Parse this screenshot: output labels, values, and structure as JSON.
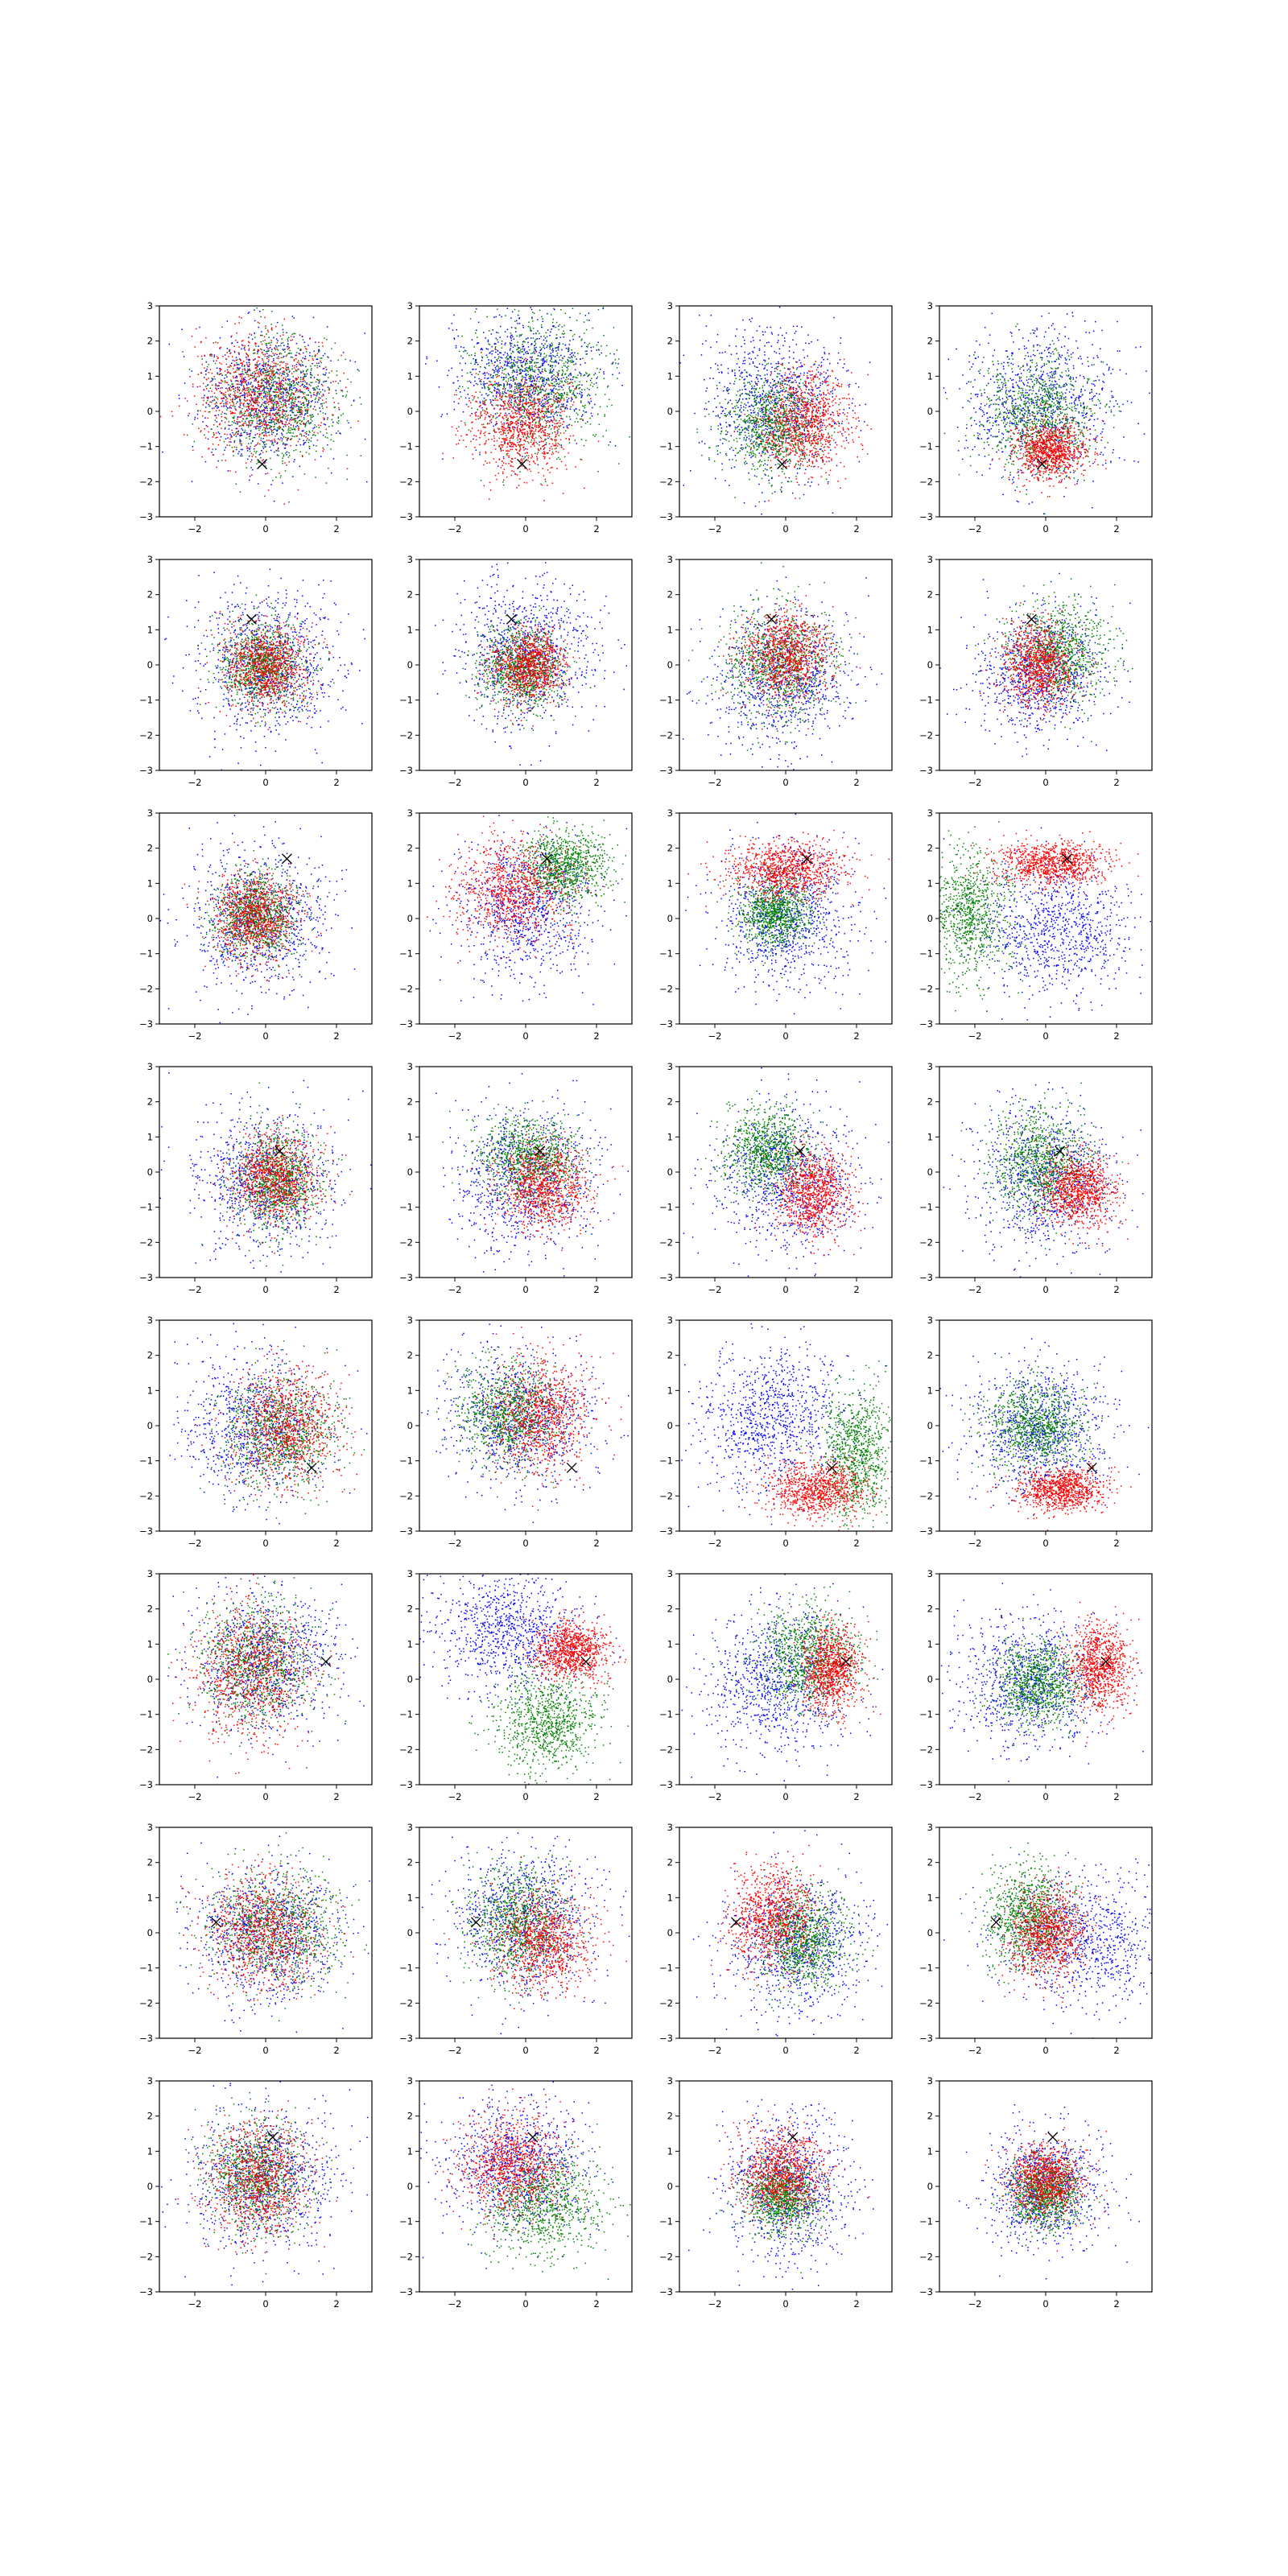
{
  "chart_data": {
    "type": "scatter",
    "layout": {
      "rows": 8,
      "cols": 4
    },
    "x_range": [
      -3,
      3
    ],
    "y_range": [
      -3,
      3
    ],
    "x_ticks": [
      -2,
      0,
      2
    ],
    "x_tick_labels": [
      "−2",
      "0",
      "2"
    ],
    "y_ticks": [
      -3,
      -2,
      -1,
      0,
      1,
      2,
      3
    ],
    "y_tick_labels": [
      "−3",
      "−2",
      "−1",
      "0",
      "1",
      "2",
      "3"
    ],
    "grid": false,
    "legend": "none",
    "marker_style": "x",
    "point_style": "tiny dots",
    "series_colors": {
      "blue": "#0000ff",
      "green": "#008000",
      "red": "#ff0000"
    },
    "rows": [
      {
        "marker": [
          -0.1,
          -1.5
        ],
        "panels": [
          {
            "blue": {
              "cx": 0,
              "cy": 0.4,
              "sx": 0.95,
              "sy": 0.95
            },
            "green": {
              "cx": 0.3,
              "cy": 0.3,
              "sx": 0.9,
              "sy": 0.9
            },
            "red": {
              "cx": -0.2,
              "cy": 0.5,
              "sx": 0.9,
              "sy": 0.9
            }
          },
          {
            "blue": {
              "cx": 0,
              "cy": 1.0,
              "sx": 1.0,
              "sy": 0.9
            },
            "green": {
              "cx": 0.3,
              "cy": 0.8,
              "sx": 0.9,
              "sy": 0.9
            },
            "red": {
              "cx": -0.1,
              "cy": -0.4,
              "sx": 0.7,
              "sy": 0.7
            }
          },
          {
            "blue": {
              "cx": -0.3,
              "cy": 0.3,
              "sx": 1.0,
              "sy": 1.1
            },
            "green": {
              "cx": -0.4,
              "cy": -0.4,
              "sx": 0.7,
              "sy": 0.7
            },
            "red": {
              "cx": 0.5,
              "cy": -0.3,
              "sx": 0.6,
              "sy": 0.7
            }
          },
          {
            "blue": {
              "cx": -0.1,
              "cy": 0.2,
              "sx": 1.1,
              "sy": 1.1
            },
            "green": {
              "cx": -0.2,
              "cy": -0.1,
              "sx": 0.8,
              "sy": 0.8
            },
            "red": {
              "cx": 0.1,
              "cy": -1.1,
              "sx": 0.5,
              "sy": 0.4
            }
          }
        ]
      },
      {
        "marker": [
          -0.4,
          1.3
        ],
        "panels": [
          {
            "blue": {
              "cx": 0,
              "cy": 0,
              "sx": 1.0,
              "sy": 1.0
            },
            "green": {
              "cx": -0.1,
              "cy": 0,
              "sx": 0.6,
              "sy": 0.6
            },
            "red": {
              "cx": 0,
              "cy": 0,
              "sx": 0.6,
              "sy": 0.6
            }
          },
          {
            "blue": {
              "cx": 0,
              "cy": 0.3,
              "sx": 1.0,
              "sy": 1.0
            },
            "green": {
              "cx": -0.1,
              "cy": -0.1,
              "sx": 0.6,
              "sy": 0.6
            },
            "red": {
              "cx": 0.1,
              "cy": 0,
              "sx": 0.5,
              "sy": 0.5
            }
          },
          {
            "blue": {
              "cx": -0.1,
              "cy": -0.3,
              "sx": 1.0,
              "sy": 1.0
            },
            "green": {
              "cx": -0.2,
              "cy": 0,
              "sx": 0.8,
              "sy": 0.8
            },
            "red": {
              "cx": 0,
              "cy": 0.3,
              "sx": 0.6,
              "sy": 0.6
            }
          },
          {
            "blue": {
              "cx": -0.1,
              "cy": -0.2,
              "sx": 0.9,
              "sy": 0.9
            },
            "green": {
              "cx": 0.4,
              "cy": 0.4,
              "sx": 0.7,
              "sy": 0.7
            },
            "red": {
              "cx": -0.2,
              "cy": 0,
              "sx": 0.5,
              "sy": 0.6
            }
          }
        ]
      },
      {
        "marker": [
          0.6,
          1.7
        ],
        "panels": [
          {
            "blue": {
              "cx": -0.2,
              "cy": 0,
              "sx": 1.0,
              "sy": 1.0
            },
            "green": {
              "cx": -0.3,
              "cy": 0.1,
              "sx": 0.6,
              "sy": 0.6
            },
            "red": {
              "cx": -0.3,
              "cy": 0.1,
              "sx": 0.6,
              "sy": 0.6
            }
          },
          {
            "blue": {
              "cx": 0,
              "cy": 0.3,
              "sx": 1.0,
              "sy": 1.0
            },
            "green": {
              "cx": 1.1,
              "cy": 1.5,
              "sx": 0.6,
              "sy": 0.5
            },
            "red": {
              "cx": -0.4,
              "cy": 0.8,
              "sx": 0.8,
              "sy": 0.7
            }
          },
          {
            "blue": {
              "cx": 0,
              "cy": 0,
              "sx": 1.0,
              "sy": 1.0
            },
            "green": {
              "cx": -0.3,
              "cy": 0.2,
              "sx": 0.5,
              "sy": 0.5
            },
            "red": {
              "cx": 0,
              "cy": 1.4,
              "sx": 0.8,
              "sy": 0.4
            }
          },
          {
            "blue": {
              "cx": 0.3,
              "cy": -0.3,
              "sx": 1.1,
              "sy": 0.9
            },
            "green": {
              "cx": -2.2,
              "cy": 0.2,
              "sx": 0.6,
              "sy": 0.9
            },
            "red": {
              "cx": 0.2,
              "cy": 1.6,
              "sx": 0.8,
              "sy": 0.3
            }
          }
        ]
      },
      {
        "marker": [
          0.4,
          0.6
        ],
        "panels": [
          {
            "blue": {
              "cx": 0,
              "cy": -0.2,
              "sx": 1.0,
              "sy": 1.0
            },
            "green": {
              "cx": 0.3,
              "cy": -0.2,
              "sx": 0.6,
              "sy": 0.7
            },
            "red": {
              "cx": 0.2,
              "cy": -0.2,
              "sx": 0.6,
              "sy": 0.6
            }
          },
          {
            "blue": {
              "cx": 0,
              "cy": -0.2,
              "sx": 1.0,
              "sy": 1.0
            },
            "green": {
              "cx": 0.1,
              "cy": 0.4,
              "sx": 0.7,
              "sy": 0.6
            },
            "red": {
              "cx": 0.5,
              "cy": -0.4,
              "sx": 0.6,
              "sy": 0.6
            }
          },
          {
            "blue": {
              "cx": 0,
              "cy": -0.2,
              "sx": 1.0,
              "sy": 1.0
            },
            "green": {
              "cx": -0.5,
              "cy": 0.6,
              "sx": 0.6,
              "sy": 0.6
            },
            "red": {
              "cx": 0.8,
              "cy": -0.6,
              "sx": 0.5,
              "sy": 0.6
            }
          },
          {
            "blue": {
              "cx": 0,
              "cy": -0.2,
              "sx": 1.0,
              "sy": 1.0
            },
            "green": {
              "cx": -0.2,
              "cy": 0.3,
              "sx": 0.7,
              "sy": 0.7
            },
            "red": {
              "cx": 0.9,
              "cy": -0.5,
              "sx": 0.5,
              "sy": 0.5
            }
          }
        ]
      },
      {
        "marker": [
          1.3,
          -1.2
        ],
        "panels": [
          {
            "blue": {
              "cx": -0.3,
              "cy": 0,
              "sx": 1.0,
              "sy": 1.0
            },
            "green": {
              "cx": 0.4,
              "cy": -0.2,
              "sx": 0.8,
              "sy": 0.8
            },
            "red": {
              "cx": 0.6,
              "cy": 0,
              "sx": 0.7,
              "sy": 0.8
            }
          },
          {
            "blue": {
              "cx": -0.2,
              "cy": 0.3,
              "sx": 1.0,
              "sy": 1.0
            },
            "green": {
              "cx": -0.5,
              "cy": 0.4,
              "sx": 0.7,
              "sy": 0.7
            },
            "red": {
              "cx": 0.4,
              "cy": 0.3,
              "sx": 0.7,
              "sy": 0.8
            }
          },
          {
            "blue": {
              "cx": -0.5,
              "cy": 0.2,
              "sx": 1.0,
              "sy": 1.0
            },
            "green": {
              "cx": 2.0,
              "cy": -0.8,
              "sx": 0.5,
              "sy": 0.9
            },
            "red": {
              "cx": 0.8,
              "cy": -1.8,
              "sx": 0.7,
              "sy": 0.4
            }
          },
          {
            "blue": {
              "cx": -0.2,
              "cy": -0.1,
              "sx": 1.0,
              "sy": 0.9
            },
            "green": {
              "cx": -0.3,
              "cy": 0,
              "sx": 0.7,
              "sy": 0.6
            },
            "red": {
              "cx": 0.4,
              "cy": -1.8,
              "sx": 0.6,
              "sy": 0.3
            }
          }
        ]
      },
      {
        "marker": [
          1.7,
          0.5
        ],
        "panels": [
          {
            "blue": {
              "cx": 0,
              "cy": 0.6,
              "sx": 1.0,
              "sy": 1.0
            },
            "green": {
              "cx": -0.3,
              "cy": 0.5,
              "sx": 0.8,
              "sy": 0.9
            },
            "red": {
              "cx": -0.4,
              "cy": 0.2,
              "sx": 0.8,
              "sy": 0.9
            }
          },
          {
            "blue": {
              "cx": -0.5,
              "cy": 1.4,
              "sx": 1.0,
              "sy": 0.8
            },
            "green": {
              "cx": 0.6,
              "cy": -1.2,
              "sx": 0.7,
              "sy": 0.7
            },
            "red": {
              "cx": 1.3,
              "cy": 0.8,
              "sx": 0.5,
              "sy": 0.4
            }
          },
          {
            "blue": {
              "cx": -0.2,
              "cy": 0,
              "sx": 1.0,
              "sy": 1.0
            },
            "green": {
              "cx": 0.6,
              "cy": 0.7,
              "sx": 0.7,
              "sy": 0.7
            },
            "red": {
              "cx": 1.3,
              "cy": 0.3,
              "sx": 0.4,
              "sy": 0.6
            }
          },
          {
            "blue": {
              "cx": -0.5,
              "cy": -0.1,
              "sx": 1.0,
              "sy": 0.9
            },
            "green": {
              "cx": -0.2,
              "cy": -0.1,
              "sx": 0.6,
              "sy": 0.6
            },
            "red": {
              "cx": 1.5,
              "cy": 0.4,
              "sx": 0.4,
              "sy": 0.6
            }
          }
        ]
      },
      {
        "marker": [
          -1.4,
          0.3
        ],
        "panels": [
          {
            "blue": {
              "cx": 0,
              "cy": 0,
              "sx": 1.0,
              "sy": 1.0
            },
            "green": {
              "cx": 0.3,
              "cy": 0.1,
              "sx": 0.9,
              "sy": 0.8
            },
            "red": {
              "cx": -0.1,
              "cy": 0,
              "sx": 0.8,
              "sy": 0.8
            }
          },
          {
            "blue": {
              "cx": 0,
              "cy": 0.4,
              "sx": 1.0,
              "sy": 1.0
            },
            "green": {
              "cx": -0.2,
              "cy": 0.3,
              "sx": 0.7,
              "sy": 0.8
            },
            "red": {
              "cx": 0.5,
              "cy": -0.2,
              "sx": 0.7,
              "sy": 0.7
            }
          },
          {
            "blue": {
              "cx": 0.3,
              "cy": -0.3,
              "sx": 1.0,
              "sy": 1.0
            },
            "green": {
              "cx": 0.5,
              "cy": -0.2,
              "sx": 0.6,
              "sy": 0.7
            },
            "red": {
              "cx": -0.4,
              "cy": 0.5,
              "sx": 0.6,
              "sy": 0.7
            }
          },
          {
            "blue": {
              "cx": 1.0,
              "cy": -0.2,
              "sx": 1.1,
              "sy": 0.9
            },
            "green": {
              "cx": -0.5,
              "cy": 0.5,
              "sx": 0.6,
              "sy": 0.7
            },
            "red": {
              "cx": 0,
              "cy": 0,
              "sx": 0.5,
              "sy": 0.6
            }
          }
        ]
      },
      {
        "marker": [
          0.2,
          1.4
        ],
        "panels": [
          {
            "blue": {
              "cx": 0,
              "cy": 0.2,
              "sx": 1.0,
              "sy": 1.0
            },
            "green": {
              "cx": -0.3,
              "cy": 0.3,
              "sx": 0.7,
              "sy": 0.8
            },
            "red": {
              "cx": -0.2,
              "cy": 0.2,
              "sx": 0.7,
              "sy": 0.8
            }
          },
          {
            "blue": {
              "cx": -0.3,
              "cy": 0.6,
              "sx": 1.0,
              "sy": 0.9
            },
            "green": {
              "cx": 0.5,
              "cy": -0.5,
              "sx": 0.8,
              "sy": 0.7
            },
            "red": {
              "cx": -0.4,
              "cy": 0.6,
              "sx": 0.7,
              "sy": 0.7
            }
          },
          {
            "blue": {
              "cx": 0,
              "cy": 0,
              "sx": 0.9,
              "sy": 1.0
            },
            "green": {
              "cx": -0.1,
              "cy": -0.3,
              "sx": 0.5,
              "sy": 0.5
            },
            "red": {
              "cx": -0.1,
              "cy": 0.4,
              "sx": 0.6,
              "sy": 0.6
            }
          },
          {
            "blue": {
              "cx": 0,
              "cy": -0.1,
              "sx": 0.8,
              "sy": 0.8
            },
            "green": {
              "cx": 0,
              "cy": -0.2,
              "sx": 0.5,
              "sy": 0.5
            },
            "red": {
              "cx": 0,
              "cy": 0.2,
              "sx": 0.5,
              "sy": 0.5
            }
          }
        ]
      }
    ]
  }
}
